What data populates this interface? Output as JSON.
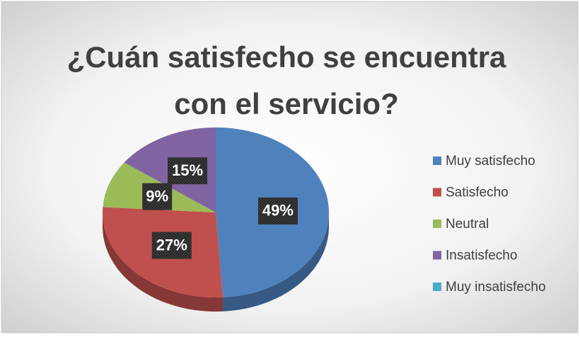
{
  "chart_data": {
    "type": "pie",
    "title": "¿Cuán satisfecho se encuentra con el servicio?",
    "categories": [
      "Muy satisfecho",
      "Satisfecho",
      "Neutral",
      "Insatisfecho",
      "Muy insatisfecho"
    ],
    "values": [
      49,
      27,
      9,
      15,
      0
    ],
    "value_labels": [
      "49%",
      "27%",
      "9%",
      "15%",
      null
    ],
    "colors": [
      "#4f81bd",
      "#c0504d",
      "#9bbb59",
      "#8064a2",
      "#4bacc6"
    ],
    "legend": "right"
  }
}
